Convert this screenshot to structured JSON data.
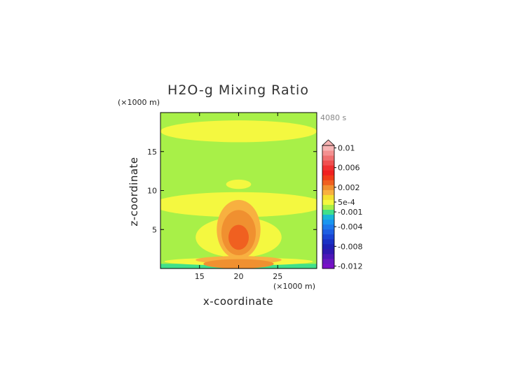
{
  "chart_data": {
    "type": "heatmap",
    "title": "H2O-g Mixing Ratio",
    "xlabel": "x-coordinate",
    "ylabel": "z-coordinate",
    "x_unit": "(×1000 m)",
    "y_unit": "(×1000 m)",
    "time_label": "4080 s",
    "xlim": [
      10,
      30
    ],
    "ylim": [
      0,
      20
    ],
    "x_ticks": [
      "15",
      "20",
      "25"
    ],
    "y_ticks": [
      "5",
      "10",
      "15"
    ],
    "colorbar": {
      "extend": "max",
      "tick_labels": [
        "0.01",
        "0.006",
        "0.002",
        "5e-4",
        "-0.001",
        "-0.004",
        "-0.008",
        "-0.012"
      ],
      "levels": [
        {
          "value": -0.012,
          "color": "#7a10c8"
        },
        {
          "value": -0.011,
          "color": "#6818c0"
        },
        {
          "value": -0.01,
          "color": "#4c16b8"
        },
        {
          "value": -0.009,
          "color": "#3018b0"
        },
        {
          "value": -0.008,
          "color": "#1e20b4"
        },
        {
          "value": -0.007,
          "color": "#1a30c4"
        },
        {
          "value": -0.006,
          "color": "#1a44d4"
        },
        {
          "value": -0.005,
          "color": "#1e5ee2"
        },
        {
          "value": -0.004,
          "color": "#1e78ec"
        },
        {
          "value": -0.003,
          "color": "#1a96f0"
        },
        {
          "value": -0.002,
          "color": "#18b6d8"
        },
        {
          "value": -0.001,
          "color": "#40e08a"
        },
        {
          "value": 0.0,
          "color": "#a8f048"
        },
        {
          "value": 0.0005,
          "color": "#f4f840"
        },
        {
          "value": 0.001,
          "color": "#f4e030"
        },
        {
          "value": 0.0015,
          "color": "#f8b040"
        },
        {
          "value": 0.002,
          "color": "#f09030"
        },
        {
          "value": 0.003,
          "color": "#f06020"
        },
        {
          "value": 0.004,
          "color": "#f03c18"
        },
        {
          "value": 0.005,
          "color": "#f02020"
        },
        {
          "value": 0.006,
          "color": "#f03030"
        },
        {
          "value": 0.007,
          "color": "#f05050"
        },
        {
          "value": 0.008,
          "color": "#f07070"
        },
        {
          "value": 0.009,
          "color": "#f49090"
        },
        {
          "value": 0.01,
          "color": "#f8b4b4"
        }
      ]
    },
    "fields": [
      {
        "level": 0.0,
        "color": "#a8f048",
        "shape": "rect",
        "x0": 10,
        "x1": 30,
        "z0": 0,
        "z1": 20
      },
      {
        "level": -0.001,
        "color": "#40e08a",
        "shape": "rect",
        "x0": 10,
        "x1": 30,
        "z0": 0,
        "z1": 0.6
      },
      {
        "level": 0.0005,
        "color": "#f4f840",
        "shape": "ellipse",
        "x": 20,
        "z": 17.6,
        "rx": 10,
        "rz": 1.4
      },
      {
        "level": 0.0005,
        "color": "#f4f840",
        "shape": "ellipse",
        "x": 20,
        "z": 8.2,
        "rx": 11,
        "rz": 1.6
      },
      {
        "level": 0.0005,
        "color": "#f4f840",
        "shape": "ellipse",
        "x": 20,
        "z": 4.0,
        "rx": 5.5,
        "rz": 2.6
      },
      {
        "level": 0.0005,
        "color": "#f4f840",
        "shape": "ellipse",
        "x": 20,
        "z": 0.9,
        "rx": 9.5,
        "rz": 0.5
      },
      {
        "level": 0.0005,
        "color": "#f4f840",
        "shape": "ellipse",
        "x": 20,
        "z": 10.8,
        "rx": 1.6,
        "rz": 0.6
      },
      {
        "level": 0.0015,
        "color": "#f8b040",
        "shape": "ellipse",
        "x": 20,
        "z": 5.0,
        "rx": 2.8,
        "rz": 3.8
      },
      {
        "level": 0.0015,
        "color": "#f8b040",
        "shape": "ellipse",
        "x": 20,
        "z": 1.1,
        "rx": 5.5,
        "rz": 0.5
      },
      {
        "level": 0.002,
        "color": "#f09030",
        "shape": "ellipse",
        "x": 20,
        "z": 4.6,
        "rx": 2.2,
        "rz": 2.9
      },
      {
        "level": 0.002,
        "color": "#f09030",
        "shape": "ellipse",
        "x": 20,
        "z": 0.6,
        "rx": 4.5,
        "rz": 0.6
      },
      {
        "level": 0.003,
        "color": "#f06020",
        "shape": "ellipse",
        "x": 20,
        "z": 4.0,
        "rx": 1.3,
        "rz": 1.6
      }
    ]
  }
}
